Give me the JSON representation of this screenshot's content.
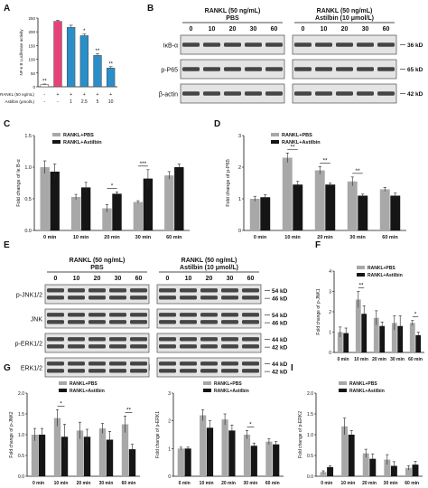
{
  "colors": {
    "pbs": "#a8a8a8",
    "astilbin": "#151515",
    "blot_bg": "#e4e4e4",
    "band": "#222222"
  },
  "panel_letters": [
    "A",
    "B",
    "C",
    "D",
    "E",
    "F",
    "G",
    "H",
    "I"
  ],
  "blots": {
    "B": {
      "groups": [
        {
          "header": "RANKL (50 ng/mL)",
          "subheader": "PBS"
        },
        {
          "header": "RANKL (50 ng/mL)",
          "subheader": "Astilbin (10 μmol/L)"
        }
      ],
      "times": [
        "0",
        "10",
        "20",
        "30",
        "60"
      ],
      "rows": [
        "IκB-α",
        "p-P65",
        "β-actin"
      ],
      "kd": [
        "36 kD",
        "65 kD",
        "42 kD"
      ]
    },
    "E": {
      "groups": [
        {
          "header": "RANKL (50 ng/mL)",
          "subheader": "PBS"
        },
        {
          "header": "RANKL (50 ng/mL)",
          "subheader": "Astilbin (10 μmol/L)"
        }
      ],
      "times": [
        "0",
        "10",
        "20",
        "30",
        "60"
      ],
      "rows": [
        "p-JNK1/2",
        "JNK",
        "p-ERK1/2",
        "ERK1/2"
      ],
      "kd": [
        [
          "54 kD",
          "46 kD"
        ],
        [
          "54 kD",
          "46 kD"
        ],
        [
          "44 kD",
          "42 kD"
        ],
        [
          "44 kD",
          "42 kD"
        ]
      ]
    }
  },
  "chart_data": [
    {
      "panel": "A",
      "type": "bar",
      "ylabel": "NF-κ B Luciferase activity",
      "ylim": [
        0,
        250
      ],
      "yticks": [
        0,
        50,
        100,
        150,
        200,
        250
      ],
      "values": [
        8,
        238,
        216,
        186,
        114,
        68
      ],
      "errors": [
        2,
        4,
        8,
        6,
        6,
        5
      ],
      "colors": [
        "#ffffff",
        "#e8407a",
        "#2a8fc8",
        "#2a8fc8",
        "#2a8fc8",
        "#2a8fc8"
      ],
      "annotations": [
        "**",
        "",
        "",
        "*",
        "**",
        "**"
      ],
      "rows": [
        {
          "label": "RANKL (50 ng/mL)",
          "cells": [
            "-",
            "+",
            "+",
            "+",
            "+",
            "+"
          ]
        },
        {
          "label": "Astilbin (μmol/L)",
          "cells": [
            "-",
            "-",
            "1",
            "2.5",
            "5",
            "10"
          ]
        }
      ]
    },
    {
      "panel": "C",
      "type": "bar",
      "ylabel": "Fold change of Iκ B-α",
      "ylim": [
        0,
        1.5
      ],
      "yticks": [
        "0.0",
        "0.5",
        "1.0",
        "1.5"
      ],
      "categories": [
        "0 min",
        "10 min",
        "20 min",
        "30 min",
        "60 min"
      ],
      "series": [
        {
          "name": "RANKL+PBS",
          "values": [
            1.0,
            0.53,
            0.35,
            0.45,
            0.87
          ],
          "errors": [
            0.1,
            0.04,
            0.06,
            0.02,
            0.06
          ]
        },
        {
          "name": "RANKL+Astilbin",
          "values": [
            0.93,
            0.68,
            0.58,
            0.82,
            1.0
          ],
          "errors": [
            0.12,
            0.08,
            0.03,
            0.14,
            0.05
          ]
        }
      ],
      "annotations": [
        {
          "index": 2,
          "text": "*"
        },
        {
          "index": 3,
          "text": "***"
        }
      ]
    },
    {
      "panel": "D",
      "type": "bar",
      "ylabel": "Fold change of p-P65",
      "ylim": [
        0,
        3
      ],
      "yticks": [
        "0",
        "1",
        "2",
        "3"
      ],
      "categories": [
        "0 min",
        "10 min",
        "20 min",
        "30 min",
        "60 min"
      ],
      "series": [
        {
          "name": "RANKL+PBS",
          "values": [
            1.0,
            2.3,
            1.9,
            1.55,
            1.3
          ],
          "errors": [
            0.08,
            0.15,
            0.12,
            0.14,
            0.06
          ]
        },
        {
          "name": "RANKL+Astilbin",
          "values": [
            1.05,
            1.45,
            1.45,
            1.1,
            1.1
          ],
          "errors": [
            0.08,
            0.1,
            0.05,
            0.05,
            0.08
          ]
        }
      ],
      "annotations": [
        {
          "index": 1,
          "text": "**"
        },
        {
          "index": 2,
          "text": "**"
        },
        {
          "index": 3,
          "text": "**"
        }
      ]
    },
    {
      "panel": "F",
      "type": "bar",
      "ylabel": "Fold change of p-JNK1",
      "ylim": [
        0,
        4
      ],
      "yticks": [
        "0",
        "1",
        "2",
        "3",
        "4"
      ],
      "categories": [
        "0 min",
        "10 min",
        "20 min",
        "30 min",
        "60 min"
      ],
      "series": [
        {
          "name": "RANKL+PBS",
          "values": [
            1.0,
            2.6,
            1.7,
            1.45,
            1.45
          ],
          "errors": [
            0.25,
            0.4,
            0.35,
            0.35,
            0.12
          ]
        },
        {
          "name": "RANKL+Astilbin",
          "values": [
            0.95,
            1.9,
            1.3,
            1.3,
            0.85
          ],
          "errors": [
            0.25,
            0.4,
            0.2,
            0.5,
            0.15
          ]
        }
      ],
      "annotations": [
        {
          "index": 1,
          "text": "**"
        },
        {
          "index": 4,
          "text": "*"
        }
      ]
    },
    {
      "panel": "G",
      "type": "bar",
      "ylabel": "Fold change of p-JNK2",
      "ylim": [
        0,
        2.0
      ],
      "yticks": [
        "0.0",
        "0.5",
        "1.0",
        "1.5",
        "2.0"
      ],
      "categories": [
        "0 min",
        "10 min",
        "20 min",
        "30 min",
        "60 min"
      ],
      "series": [
        {
          "name": "RANKL+PBS",
          "values": [
            1.0,
            1.4,
            1.1,
            1.15,
            1.25
          ],
          "errors": [
            0.15,
            0.2,
            0.2,
            0.12,
            0.2
          ]
        },
        {
          "name": "RANKL+Astilbin",
          "values": [
            1.0,
            0.95,
            0.95,
            0.88,
            0.65
          ],
          "errors": [
            0.15,
            0.3,
            0.18,
            0.2,
            0.12
          ]
        }
      ],
      "annotations": [
        {
          "index": 1,
          "text": "*"
        },
        {
          "index": 4,
          "text": "**"
        }
      ]
    },
    {
      "panel": "H",
      "type": "bar",
      "ylabel": "Fold change of p-ERK1",
      "ylim": [
        0,
        3
      ],
      "yticks": [
        "0",
        "1",
        "2",
        "3"
      ],
      "categories": [
        "0 min",
        "10 min",
        "20 min",
        "30 min",
        "60 min"
      ],
      "series": [
        {
          "name": "RANKL+PBS",
          "values": [
            1.0,
            2.2,
            2.05,
            1.5,
            1.25
          ],
          "errors": [
            0.05,
            0.2,
            0.2,
            0.15,
            0.1
          ]
        },
        {
          "name": "RANKL+Astilbin",
          "values": [
            1.0,
            1.75,
            1.65,
            1.1,
            1.15
          ],
          "errors": [
            0.05,
            0.25,
            0.2,
            0.1,
            0.1
          ]
        }
      ],
      "annotations": [
        {
          "index": 3,
          "text": "*"
        }
      ]
    },
    {
      "panel": "I",
      "type": "bar",
      "ylabel": "Fold change of p-ERK2",
      "ylim": [
        0,
        2.0
      ],
      "yticks": [
        "0.0",
        "0.5",
        "1.0",
        "1.5",
        "2.0"
      ],
      "categories": [
        "0 min",
        "10 min",
        "20 min",
        "30 min",
        "60 min"
      ],
      "series": [
        {
          "name": "RANKL+PBS",
          "values": [
            0.1,
            1.2,
            0.55,
            0.4,
            0.2
          ],
          "errors": [
            0.03,
            0.2,
            0.1,
            0.12,
            0.05
          ]
        },
        {
          "name": "RANKL+Astilbin",
          "values": [
            0.22,
            1.0,
            0.42,
            0.25,
            0.28
          ],
          "errors": [
            0.03,
            0.1,
            0.12,
            0.1,
            0.08
          ]
        }
      ],
      "annotations": []
    }
  ]
}
